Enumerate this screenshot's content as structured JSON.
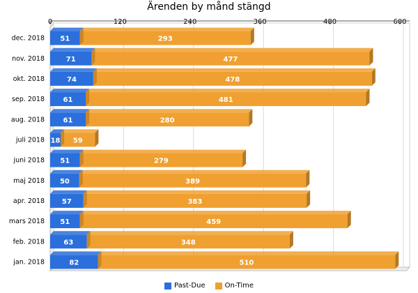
{
  "chart_data": {
    "type": "bar",
    "orientation": "horizontal",
    "stacked": true,
    "title": "Ärenden by månd stängd",
    "categories": [
      "dec. 2018",
      "nov. 2018",
      "okt. 2018",
      "sep. 2018",
      "aug. 2018",
      "juli 2018",
      "juni 2018",
      "maj 2018",
      "apr. 2018",
      "mars 2018",
      "feb. 2018",
      "jan. 2018"
    ],
    "series": [
      {
        "name": "Past-Due",
        "color": "#2a6fdb",
        "values": [
          51,
          71,
          74,
          61,
          61,
          18,
          51,
          50,
          57,
          51,
          63,
          82
        ]
      },
      {
        "name": "On-Time",
        "color": "#f0a030",
        "values": [
          293,
          477,
          478,
          481,
          280,
          59,
          279,
          389,
          383,
          459,
          348,
          510
        ]
      }
    ],
    "xlim": [
      0,
      600
    ],
    "xticks": [
      0,
      120,
      240,
      360,
      480,
      600
    ],
    "x_axis_position": "top",
    "grid": true,
    "legend_position": "bottom-center"
  }
}
